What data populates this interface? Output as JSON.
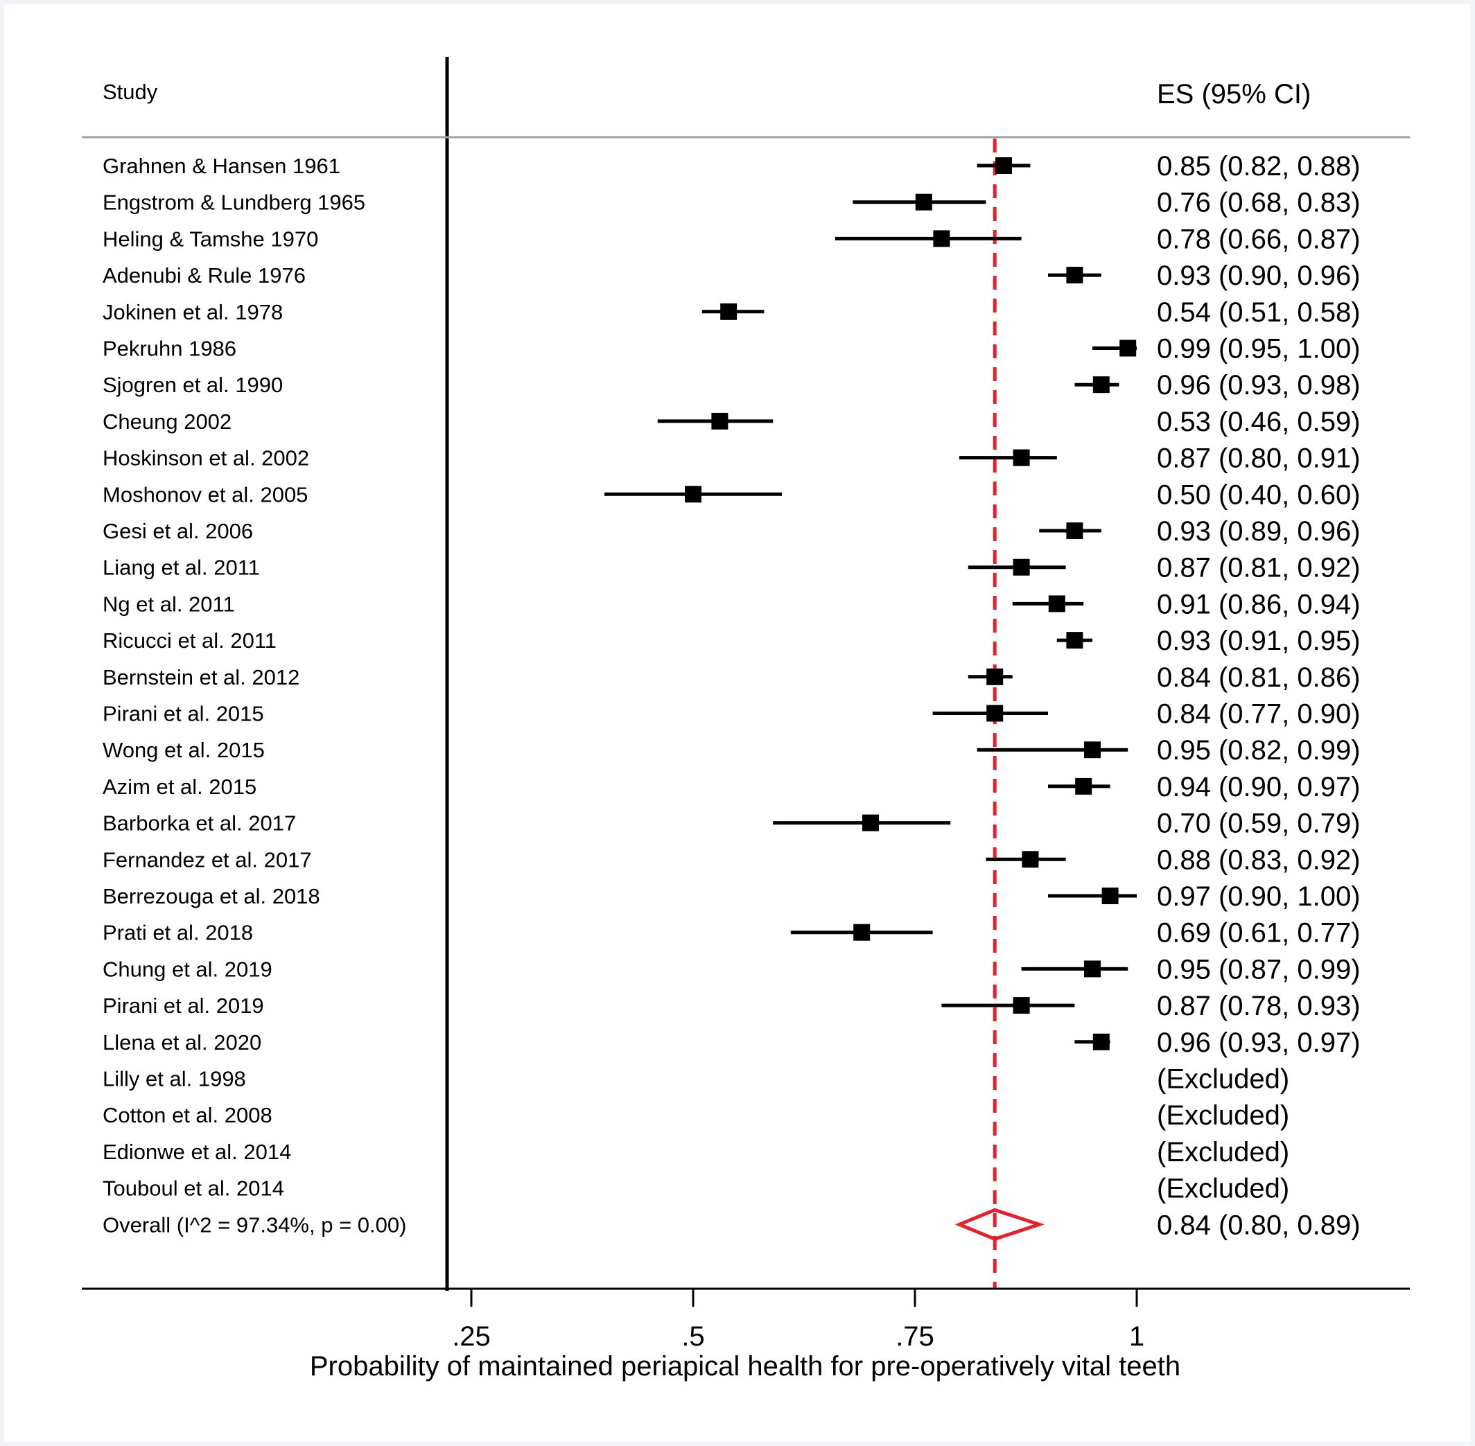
{
  "chart_data": {
    "type": "forest",
    "header": {
      "study": "Study",
      "es": "ES (95% CI)"
    },
    "xlabel": "Probability of maintained periapical health for pre-operatively vital teeth",
    "xlim": [
      0.21,
      1.31
    ],
    "ticks": [
      {
        "value": 0.25,
        "label": ".25"
      },
      {
        "value": 0.5,
        "label": ".5"
      },
      {
        "value": 0.75,
        "label": ".75"
      },
      {
        "value": 1.0,
        "label": "1"
      }
    ],
    "reference_line": 0.84,
    "colors": {
      "marker": "#000000",
      "reference_line": "#e8202a",
      "overall_diamond": "#e8202a",
      "panel_background": "#ffffff",
      "page_background": "#f2f4f8",
      "header_rule": "#a0a0a0"
    },
    "studies": [
      {
        "name": "Grahnen & Hansen 1961",
        "es": 0.85,
        "lo": 0.82,
        "hi": 0.88,
        "text": "0.85 (0.82, 0.88)"
      },
      {
        "name": "Engstrom & Lundberg 1965",
        "es": 0.76,
        "lo": 0.68,
        "hi": 0.83,
        "text": "0.76 (0.68, 0.83)"
      },
      {
        "name": "Heling & Tamshe 1970",
        "es": 0.78,
        "lo": 0.66,
        "hi": 0.87,
        "text": "0.78 (0.66, 0.87)"
      },
      {
        "name": "Adenubi & Rule 1976",
        "es": 0.93,
        "lo": 0.9,
        "hi": 0.96,
        "text": "0.93 (0.90, 0.96)"
      },
      {
        "name": "Jokinen et al. 1978",
        "es": 0.54,
        "lo": 0.51,
        "hi": 0.58,
        "text": "0.54 (0.51, 0.58)"
      },
      {
        "name": "Pekruhn 1986",
        "es": 0.99,
        "lo": 0.95,
        "hi": 1.0,
        "text": "0.99 (0.95, 1.00)"
      },
      {
        "name": "Sjogren et al. 1990",
        "es": 0.96,
        "lo": 0.93,
        "hi": 0.98,
        "text": "0.96 (0.93, 0.98)"
      },
      {
        "name": "Cheung 2002",
        "es": 0.53,
        "lo": 0.46,
        "hi": 0.59,
        "text": "0.53 (0.46, 0.59)"
      },
      {
        "name": "Hoskinson et al. 2002",
        "es": 0.87,
        "lo": 0.8,
        "hi": 0.91,
        "text": "0.87 (0.80, 0.91)"
      },
      {
        "name": "Moshonov et al. 2005",
        "es": 0.5,
        "lo": 0.4,
        "hi": 0.6,
        "text": "0.50 (0.40, 0.60)"
      },
      {
        "name": "Gesi et al. 2006",
        "es": 0.93,
        "lo": 0.89,
        "hi": 0.96,
        "text": "0.93 (0.89, 0.96)"
      },
      {
        "name": "Liang et al. 2011",
        "es": 0.87,
        "lo": 0.81,
        "hi": 0.92,
        "text": "0.87 (0.81, 0.92)"
      },
      {
        "name": "Ng et al. 2011",
        "es": 0.91,
        "lo": 0.86,
        "hi": 0.94,
        "text": "0.91 (0.86, 0.94)"
      },
      {
        "name": "Ricucci et al. 2011",
        "es": 0.93,
        "lo": 0.91,
        "hi": 0.95,
        "text": "0.93 (0.91, 0.95)"
      },
      {
        "name": "Bernstein et al. 2012",
        "es": 0.84,
        "lo": 0.81,
        "hi": 0.86,
        "text": "0.84 (0.81, 0.86)"
      },
      {
        "name": "Pirani et al. 2015",
        "es": 0.84,
        "lo": 0.77,
        "hi": 0.9,
        "text": "0.84 (0.77, 0.90)"
      },
      {
        "name": "Wong et al. 2015",
        "es": 0.95,
        "lo": 0.82,
        "hi": 0.99,
        "text": "0.95 (0.82, 0.99)"
      },
      {
        "name": "Azim et al. 2015",
        "es": 0.94,
        "lo": 0.9,
        "hi": 0.97,
        "text": "0.94 (0.90, 0.97)"
      },
      {
        "name": "Barborka et al. 2017",
        "es": 0.7,
        "lo": 0.59,
        "hi": 0.79,
        "text": "0.70 (0.59, 0.79)"
      },
      {
        "name": "Fernandez et al. 2017",
        "es": 0.88,
        "lo": 0.83,
        "hi": 0.92,
        "text": "0.88 (0.83, 0.92)"
      },
      {
        "name": "Berrezouga et al. 2018",
        "es": 0.97,
        "lo": 0.9,
        "hi": 1.0,
        "text": "0.97 (0.90, 1.00)"
      },
      {
        "name": "Prati et al. 2018",
        "es": 0.69,
        "lo": 0.61,
        "hi": 0.77,
        "text": "0.69 (0.61, 0.77)"
      },
      {
        "name": "Chung et al. 2019",
        "es": 0.95,
        "lo": 0.87,
        "hi": 0.99,
        "text": "0.95 (0.87, 0.99)"
      },
      {
        "name": "Pirani et al. 2019",
        "es": 0.87,
        "lo": 0.78,
        "hi": 0.93,
        "text": "0.87 (0.78, 0.93)"
      },
      {
        "name": "Llena et al. 2020",
        "es": 0.96,
        "lo": 0.93,
        "hi": 0.97,
        "text": "0.96 (0.93, 0.97)"
      },
      {
        "name": "Lilly et al. 1998",
        "excluded": true,
        "text": "(Excluded)"
      },
      {
        "name": "Cotton et al. 2008",
        "excluded": true,
        "text": "(Excluded)"
      },
      {
        "name": "Edionwe et al. 2014",
        "excluded": true,
        "text": "(Excluded)"
      },
      {
        "name": "Touboul et al. 2014",
        "excluded": true,
        "text": "(Excluded)"
      }
    ],
    "overall": {
      "name": "Overall  (I^2 = 97.34%, p = 0.00)",
      "es": 0.84,
      "lo": 0.8,
      "hi": 0.89,
      "text": "0.84 (0.80, 0.89)"
    }
  }
}
